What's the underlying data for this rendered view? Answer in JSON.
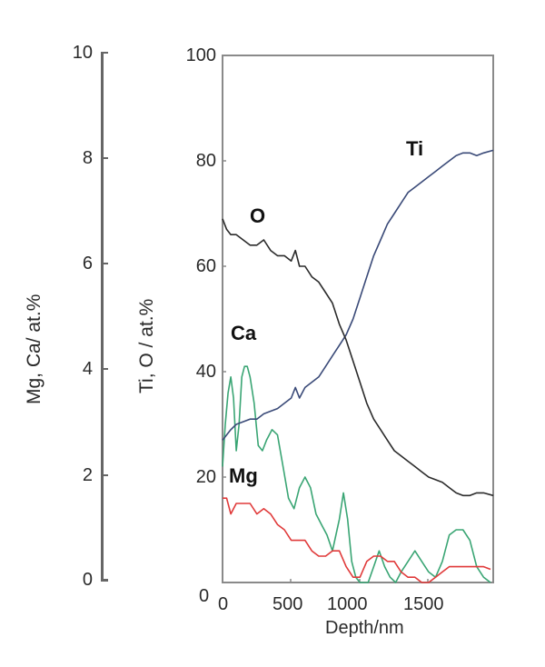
{
  "chart_data": {
    "type": "line",
    "title": "",
    "xlabel": "Depth/nm",
    "xlim": [
      0,
      1970
    ],
    "x_ticks": [
      0,
      500,
      1000,
      1500
    ],
    "y_axes": [
      {
        "side": "left-outer",
        "label": "Mg, Ca/ at.%",
        "lim": [
          0,
          10
        ],
        "ticks": [
          0,
          2,
          4,
          6,
          8,
          10
        ],
        "series": [
          "Mg",
          "Ca"
        ]
      },
      {
        "side": "left-inner",
        "label": "Ti, O / at.%",
        "lim": [
          0,
          100
        ],
        "ticks": [
          0,
          20,
          40,
          60,
          80,
          100
        ],
        "series": [
          "Ti",
          "O"
        ]
      }
    ],
    "grid": false,
    "legend": "inline labels",
    "series": [
      {
        "name": "O",
        "axis": "Ti, O / at.%",
        "color": "#2b2b2b",
        "x": [
          0,
          30,
          60,
          100,
          150,
          200,
          250,
          300,
          350,
          400,
          450,
          500,
          530,
          560,
          600,
          650,
          700,
          750,
          800,
          850,
          900,
          950,
          1000,
          1050,
          1100,
          1150,
          1200,
          1250,
          1300,
          1350,
          1400,
          1450,
          1500,
          1550,
          1600,
          1650,
          1700,
          1750,
          1800,
          1850,
          1900,
          1970
        ],
        "values": [
          69,
          67,
          66,
          66,
          65,
          64,
          64,
          65,
          63,
          62,
          62,
          61,
          63,
          60,
          60,
          58,
          57,
          55,
          53,
          49,
          46,
          42,
          38,
          34,
          31,
          29,
          27,
          25,
          24,
          23,
          22,
          21,
          20,
          19.5,
          19,
          18,
          17,
          16.5,
          16.5,
          17,
          17,
          16.5
        ]
      },
      {
        "name": "Ti",
        "axis": "Ti, O / at.%",
        "color": "#3a4a78",
        "x": [
          0,
          30,
          60,
          100,
          150,
          200,
          250,
          300,
          350,
          400,
          450,
          500,
          530,
          560,
          600,
          650,
          700,
          750,
          800,
          850,
          900,
          950,
          1000,
          1050,
          1100,
          1150,
          1200,
          1250,
          1300,
          1350,
          1400,
          1450,
          1500,
          1550,
          1600,
          1650,
          1700,
          1750,
          1800,
          1850,
          1900,
          1970
        ],
        "values": [
          27,
          28,
          29,
          30,
          30.5,
          31,
          31,
          32,
          32.5,
          33,
          34,
          35,
          37,
          35,
          37,
          38,
          39,
          41,
          43,
          45,
          47,
          50,
          54,
          58,
          62,
          65,
          68,
          70,
          72,
          74,
          75,
          76,
          77,
          78,
          79,
          80,
          81,
          81.5,
          81.5,
          81,
          81.5,
          82
        ]
      },
      {
        "name": "Ca",
        "axis": "Mg, Ca/ at.%",
        "color": "#3aa574",
        "x": [
          0,
          20,
          40,
          60,
          80,
          100,
          120,
          140,
          160,
          180,
          200,
          230,
          260,
          290,
          320,
          360,
          400,
          440,
          480,
          520,
          560,
          600,
          640,
          680,
          720,
          760,
          800,
          850,
          880,
          910,
          940,
          970,
          1000,
          1030,
          1060,
          1100,
          1140,
          1180,
          1220,
          1260,
          1300,
          1350,
          1400,
          1450,
          1500,
          1550,
          1600,
          1650,
          1700,
          1750,
          1800,
          1850,
          1900,
          1950
        ],
        "values": [
          2.2,
          3.0,
          3.6,
          3.9,
          3.5,
          2.5,
          3.0,
          3.9,
          4.1,
          4.1,
          3.9,
          3.4,
          2.6,
          2.5,
          2.7,
          2.9,
          2.8,
          2.2,
          1.6,
          1.4,
          1.8,
          2.0,
          1.8,
          1.3,
          1.1,
          0.9,
          0.6,
          1.2,
          1.7,
          1.2,
          0.4,
          0.1,
          0.0,
          0.0,
          0.0,
          0.3,
          0.6,
          0.3,
          0.1,
          0.0,
          0.2,
          0.4,
          0.6,
          0.4,
          0.2,
          0.1,
          0.4,
          0.9,
          1.0,
          1.0,
          0.8,
          0.3,
          0.1,
          0.0
        ]
      },
      {
        "name": "Mg",
        "axis": "Mg, Ca/ at.%",
        "color": "#e03a3a",
        "x": [
          0,
          30,
          60,
          100,
          150,
          200,
          250,
          300,
          350,
          400,
          450,
          500,
          550,
          600,
          650,
          700,
          750,
          800,
          850,
          900,
          950,
          1000,
          1050,
          1100,
          1150,
          1200,
          1250,
          1300,
          1350,
          1400,
          1450,
          1500,
          1550,
          1600,
          1650,
          1700,
          1750,
          1800,
          1850,
          1900,
          1950
        ],
        "values": [
          1.6,
          1.6,
          1.3,
          1.5,
          1.5,
          1.5,
          1.3,
          1.4,
          1.3,
          1.1,
          1.0,
          0.8,
          0.8,
          0.8,
          0.6,
          0.5,
          0.5,
          0.6,
          0.6,
          0.3,
          0.1,
          0.1,
          0.4,
          0.5,
          0.5,
          0.4,
          0.4,
          0.2,
          0.1,
          0.1,
          0.0,
          0.0,
          0.1,
          0.2,
          0.3,
          0.3,
          0.3,
          0.3,
          0.3,
          0.3,
          0.25
        ]
      }
    ]
  },
  "labels": {
    "series_O": "O",
    "series_Ti": "Ti",
    "series_Ca": "Ca",
    "series_Mg": "Mg",
    "xlabel": "Depth/nm",
    "ylabel_outer": "Mg, Ca/ at.%",
    "ylabel_inner": "Ti, O / at.%",
    "outer_ticks": [
      "10",
      "8",
      "6",
      "4",
      "2",
      "0"
    ],
    "inner_ticks": [
      "100",
      "80",
      "60",
      "40",
      "20",
      "0"
    ],
    "x_ticks": [
      "0",
      "500",
      "1000",
      "1500"
    ]
  }
}
